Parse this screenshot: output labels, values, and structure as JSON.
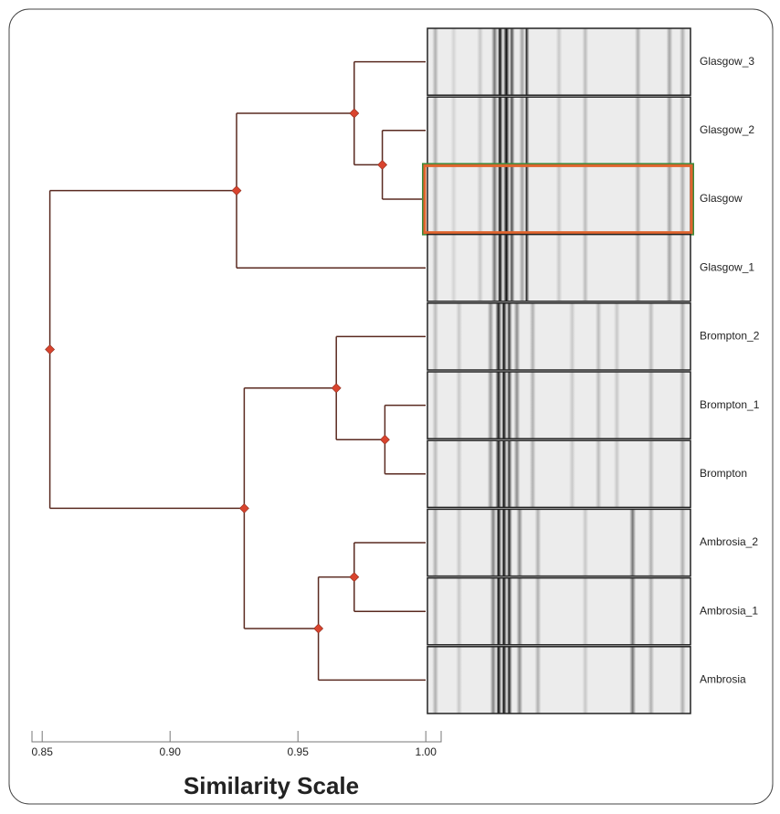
{
  "chart_data": {
    "type": "dendrogram",
    "xlabel": "Similarity Scale",
    "xlim": [
      0.846,
      1.006
    ],
    "xticks": [
      0.85,
      {
        "value": 0.9,
        "label": "0.90"
      },
      0.95,
      {
        "value": 1.0,
        "label": "1.00"
      }
    ],
    "color": "#5a2a20",
    "node_color": "#d9442e",
    "tree": {
      "similarity": 0.853,
      "children": [
        {
          "similarity": 0.926,
          "children": [
            {
              "similarity": 0.972,
              "children": [
                {
                  "label": "Glasgow_3"
                },
                {
                  "similarity": 0.983,
                  "children": [
                    {
                      "label": "Glasgow_2"
                    },
                    {
                      "label": "Glasgow"
                    }
                  ]
                }
              ]
            },
            {
              "label": "Glasgow_1"
            }
          ]
        },
        {
          "similarity": 0.929,
          "children": [
            {
              "similarity": 0.965,
              "children": [
                {
                  "label": "Brompton_2"
                },
                {
                  "similarity": 0.984,
                  "children": [
                    {
                      "label": "Brompton_1"
                    },
                    {
                      "label": "Brompton"
                    }
                  ]
                }
              ]
            },
            {
              "similarity": 0.958,
              "children": [
                {
                  "similarity": 0.972,
                  "children": [
                    {
                      "label": "Ambrosia_2"
                    },
                    {
                      "label": "Ambrosia_1"
                    }
                  ]
                },
                {
                  "label": "Ambrosia"
                }
              ]
            }
          ]
        }
      ]
    }
  }
}
